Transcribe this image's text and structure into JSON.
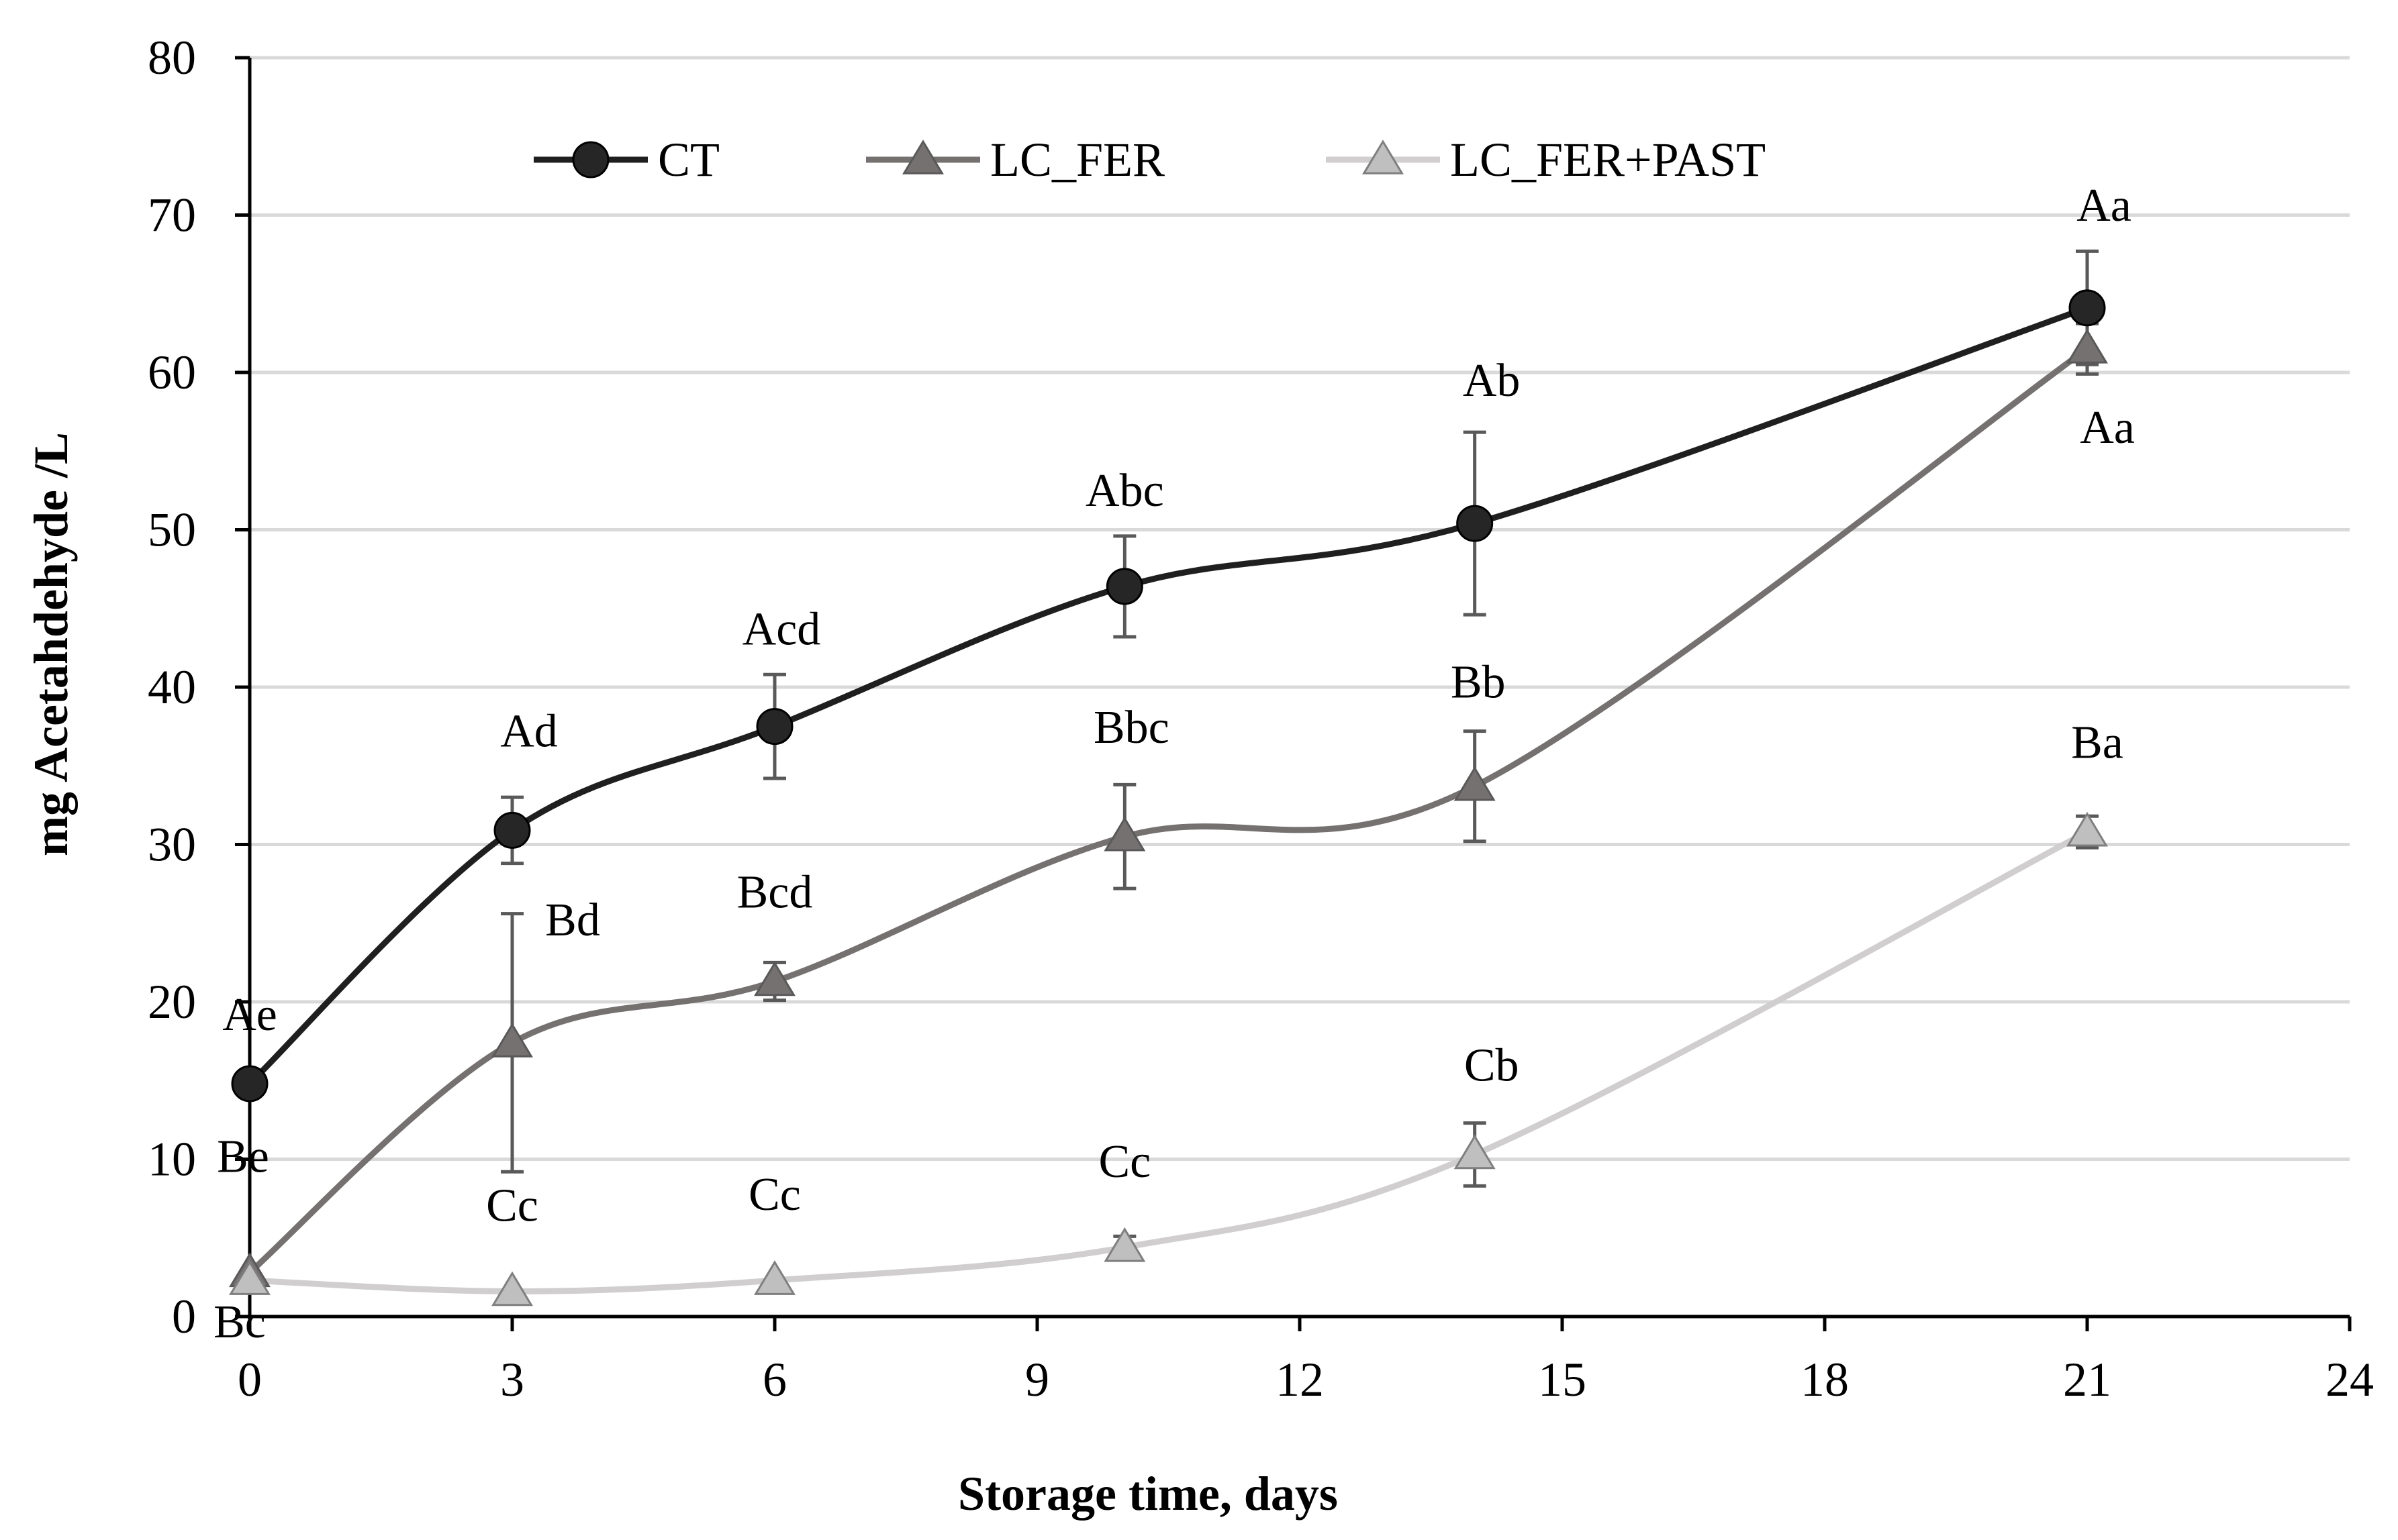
{
  "chart_data": {
    "type": "line",
    "title": "",
    "xlabel": "Storage time, days",
    "ylabel": "mg Acetahdehyde /L",
    "xlim": [
      0,
      24
    ],
    "ylim": [
      0,
      80
    ],
    "x_ticks": [
      "0",
      "3",
      "6",
      "9",
      "12",
      "15",
      "18",
      "21",
      "24"
    ],
    "y_ticks": [
      "0",
      "10",
      "20",
      "30",
      "40",
      "50",
      "60",
      "70",
      "80"
    ],
    "grid": "horizontal",
    "legend_position": "top",
    "series": [
      {
        "name": "CT",
        "marker": "circle",
        "color": "#1f1f1f",
        "marker_fill": "#262626",
        "x": [
          0,
          3,
          6,
          10,
          14,
          21
        ],
        "values": [
          14.8,
          30.9,
          37.5,
          46.4,
          50.4,
          64.1
        ],
        "error": [
          0,
          2.1,
          3.3,
          3.2,
          5.8,
          3.6
        ],
        "letters": [
          "Ae",
          "Ad",
          "Acd",
          "Abc",
          "Ab",
          "Aa"
        ]
      },
      {
        "name": "LC_FER",
        "marker": "triangle",
        "color": "#767171",
        "marker_fill": "#767171",
        "x": [
          0,
          3,
          6,
          10,
          14,
          21
        ],
        "values": [
          2.8,
          17.4,
          21.3,
          30.5,
          33.7,
          61.5
        ],
        "error": [
          0,
          8.2,
          1.2,
          3.3,
          3.5,
          1.6
        ],
        "letters": [
          "Be",
          "Bd",
          "Bcd",
          "Bbc",
          "Bb",
          "Aa"
        ]
      },
      {
        "name": "LC_FER+PAST",
        "marker": "triangle",
        "color": "#d0cece",
        "marker_fill": "#bfbfbf",
        "x": [
          0,
          3,
          6,
          10,
          14,
          21
        ],
        "values": [
          2.3,
          1.6,
          2.3,
          4.4,
          10.3,
          30.8
        ],
        "error": [
          0,
          0,
          0,
          0.7,
          2.0,
          1.0
        ],
        "letters": [
          "Bc",
          "Cc",
          "Cc",
          "Cc",
          "Cb",
          "Ba"
        ]
      }
    ]
  }
}
